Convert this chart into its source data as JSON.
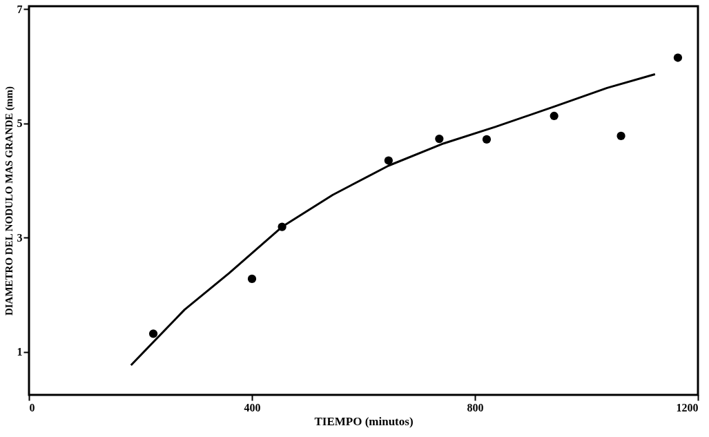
{
  "chart_data": {
    "type": "scatter",
    "xlabel": "TIEMPO (minutos)",
    "ylabel": "DIAMETRO DEL NODULO MAS GRANDE (mm)",
    "xlim": [
      0,
      1200
    ],
    "ylim": [
      0.25,
      7.05
    ],
    "xticks": [
      0,
      400,
      800,
      1200
    ],
    "yticks": [
      1,
      3,
      5,
      7
    ],
    "grid": false,
    "series": [
      {
        "marker": "circle",
        "color": "#000000",
        "x": [
          223,
          400,
          454,
          645,
          736,
          821,
          942,
          1062,
          1164
        ],
        "values": [
          1.32,
          2.28,
          3.19,
          4.35,
          4.73,
          4.72,
          5.13,
          4.78,
          6.15
        ]
      },
      {
        "type": "line",
        "color": "#000000",
        "line_style": "solid",
        "x": [
          183,
          279,
          359,
          454,
          545,
          645,
          744,
          837,
          944,
          1037,
          1123
        ],
        "values": [
          0.77,
          1.74,
          2.38,
          3.19,
          3.75,
          4.26,
          4.65,
          4.94,
          5.3,
          5.62,
          5.86
        ]
      }
    ]
  }
}
